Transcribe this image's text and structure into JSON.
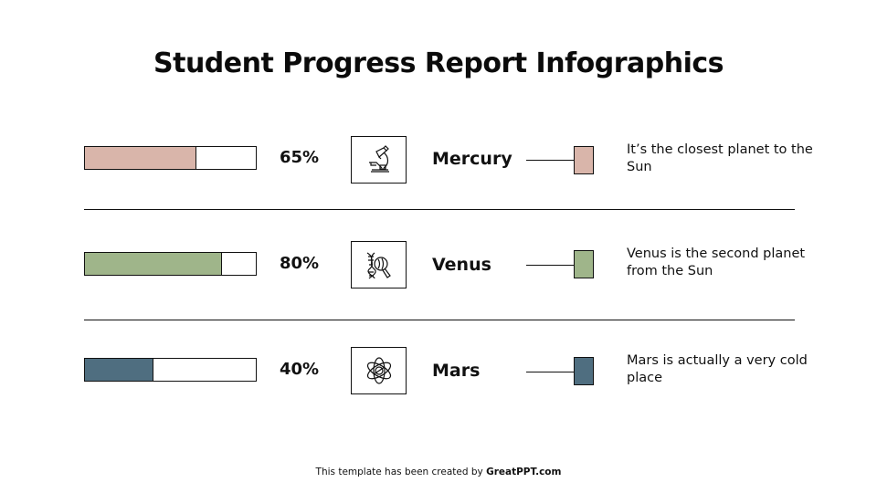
{
  "title": "Student Progress Report Infographics",
  "rows": [
    {
      "percent_label": "65%",
      "percent": 65,
      "color": "#d9b5aa",
      "icon": "microscope-icon",
      "planet": "Mercury",
      "description": "It’s the closest planet to the Sun"
    },
    {
      "percent_label": "80%",
      "percent": 80,
      "color": "#9fb58a",
      "icon": "dna-magnifier-icon",
      "planet": "Venus",
      "description": "Venus is the second planet from the Sun"
    },
    {
      "percent_label": "40%",
      "percent": 40,
      "color": "#4f6e80",
      "icon": "atom-icon",
      "planet": "Mars",
      "description": "Mars is actually a very cold place"
    }
  ],
  "footer": {
    "prefix": "This template has been created by ",
    "brand": "GreatPPT.com"
  },
  "chart_data": {
    "type": "bar",
    "orientation": "horizontal",
    "title": "Student Progress Report Infographics",
    "categories": [
      "Mercury",
      "Venus",
      "Mars"
    ],
    "values": [
      65,
      80,
      40
    ],
    "colors": [
      "#d9b5aa",
      "#9fb58a",
      "#4f6e80"
    ],
    "xlabel": "",
    "ylabel": "",
    "xlim": [
      0,
      100
    ],
    "value_labels": [
      "65%",
      "80%",
      "40%"
    ],
    "annotations": [
      "It’s the closest planet to the Sun",
      "Venus is the second planet from the Sun",
      "Mars is actually a very cold place"
    ],
    "grid": false,
    "legend": "none"
  }
}
